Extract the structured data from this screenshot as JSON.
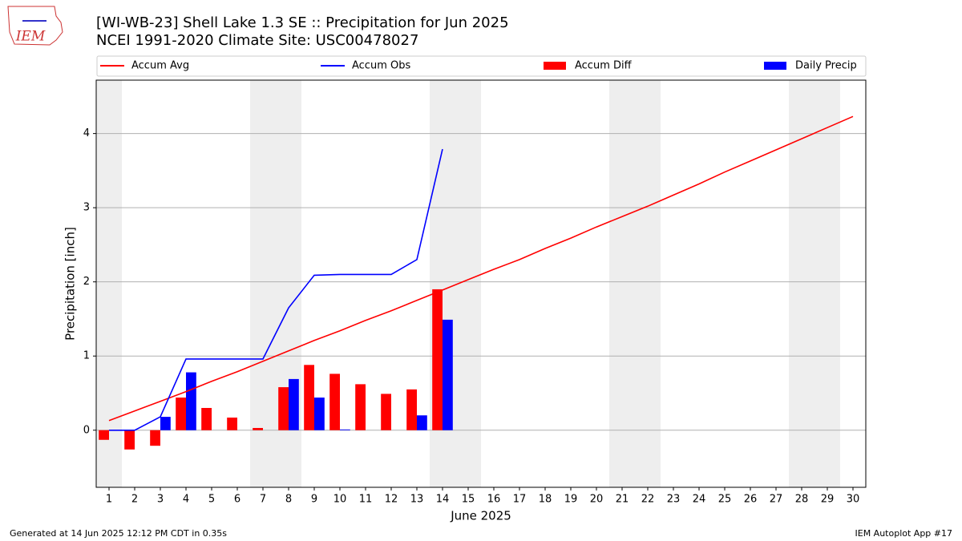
{
  "chart_data": {
    "type": "combo",
    "title": "[WI-WB-23] Shell Lake 1.3 SE :: Precipitation for Jun 2025",
    "subtitle": "NCEI 1991-2020 Climate Site: USC00478027",
    "logo_text": "IEM",
    "x_label": "June 2025",
    "y_label": "Precipitation [inch]",
    "footer_left": "Generated at 14 Jun 2025 12:12 PM CDT in 0.35s",
    "footer_right": "IEM Autoplot App #17",
    "x": [
      1,
      2,
      3,
      4,
      5,
      6,
      7,
      8,
      9,
      10,
      11,
      12,
      13,
      14,
      15,
      16,
      17,
      18,
      19,
      20,
      21,
      22,
      23,
      24,
      25,
      26,
      27,
      28,
      29,
      30
    ],
    "xlim": [
      0.5,
      30.5
    ],
    "xticks": [
      1,
      2,
      3,
      4,
      5,
      6,
      7,
      8,
      9,
      10,
      11,
      12,
      13,
      14,
      15,
      16,
      17,
      18,
      19,
      20,
      21,
      22,
      23,
      24,
      25,
      26,
      27,
      28,
      29,
      30
    ],
    "ylim": [
      -0.77,
      4.72
    ],
    "yticks": [
      0,
      1,
      2,
      3,
      4
    ],
    "grid": true,
    "weekend_days": [
      1,
      7,
      8,
      14,
      15,
      21,
      22,
      28,
      29
    ],
    "series": [
      {
        "name": "Accum Avg",
        "color": "#ff0000",
        "mark": "line",
        "values": [
          0.13,
          0.26,
          0.39,
          0.52,
          0.66,
          0.79,
          0.93,
          1.07,
          1.21,
          1.34,
          1.48,
          1.61,
          1.75,
          1.89,
          2.03,
          2.17,
          2.3,
          2.45,
          2.59,
          2.74,
          2.88,
          3.02,
          3.17,
          3.32,
          3.48,
          3.63,
          3.78,
          3.93,
          4.08,
          4.23
        ]
      },
      {
        "name": "Accum Obs",
        "color": "#0000ff",
        "mark": "line",
        "values": [
          0,
          0,
          0.18,
          0.96,
          0.96,
          0.96,
          0.96,
          1.65,
          2.09,
          2.1,
          2.1,
          2.1,
          2.3,
          3.79,
          null,
          null,
          null,
          null,
          null,
          null,
          null,
          null,
          null,
          null,
          null,
          null,
          null,
          null,
          null,
          null
        ]
      },
      {
        "name": "Accum Diff",
        "color": "#ff0000",
        "mark": "bar",
        "offset": -0.4,
        "values": [
          -0.13,
          -0.26,
          -0.21,
          0.44,
          0.3,
          0.17,
          0.03,
          0.58,
          0.88,
          0.76,
          0.62,
          0.49,
          0.55,
          1.9,
          null,
          null,
          null,
          null,
          null,
          null,
          null,
          null,
          null,
          null,
          null,
          null,
          null,
          null,
          null,
          null
        ]
      },
      {
        "name": "Daily Precip",
        "color": "#0000ff",
        "mark": "bar",
        "offset": 0,
        "values": [
          0,
          0,
          0.18,
          0.78,
          0,
          0,
          0,
          0.69,
          0.44,
          0.01,
          0,
          0,
          0.2,
          1.49,
          null,
          null,
          null,
          null,
          null,
          null,
          null,
          null,
          null,
          null,
          null,
          null,
          null,
          null,
          null,
          null
        ]
      }
    ]
  }
}
